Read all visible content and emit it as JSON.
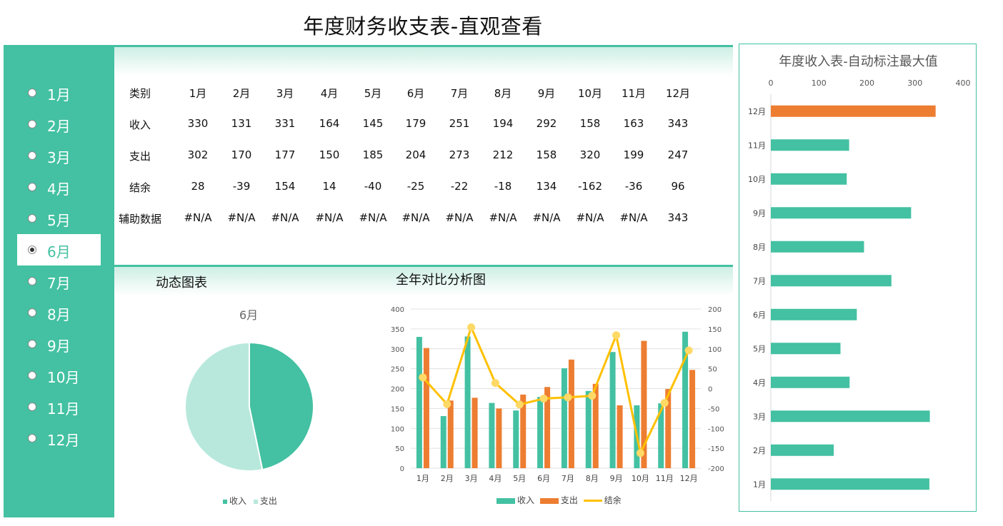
{
  "page_title": "年度财务收支表-直观查看",
  "sidebar": {
    "months": [
      "1月",
      "2月",
      "3月",
      "4月",
      "5月",
      "6月",
      "7月",
      "8月",
      "9月",
      "10月",
      "11月",
      "12月"
    ],
    "selected_index": 5
  },
  "table": {
    "rows": [
      {
        "label": "类别",
        "cells": [
          "1月",
          "2月",
          "3月",
          "4月",
          "5月",
          "6月",
          "7月",
          "8月",
          "9月",
          "10月",
          "11月",
          "12月"
        ]
      },
      {
        "label": "收入",
        "cells": [
          "330",
          "131",
          "331",
          "164",
          "145",
          "179",
          "251",
          "194",
          "292",
          "158",
          "163",
          "343"
        ]
      },
      {
        "label": "支出",
        "cells": [
          "302",
          "170",
          "177",
          "150",
          "185",
          "204",
          "273",
          "212",
          "158",
          "320",
          "199",
          "247"
        ]
      },
      {
        "label": "结余",
        "cells": [
          "28",
          "-39",
          "154",
          "14",
          "-40",
          "-25",
          "-22",
          "-18",
          "134",
          "-162",
          "-36",
          "96"
        ]
      },
      {
        "label": "辅助数据",
        "cells": [
          "#N/A",
          "#N/A",
          "#N/A",
          "#N/A",
          "#N/A",
          "#N/A",
          "#N/A",
          "#N/A",
          "#N/A",
          "#N/A",
          "#N/A",
          "343"
        ]
      }
    ]
  },
  "sections": {
    "dynamic_chart": "动态图表",
    "comparison_chart": "全年对比分析图"
  },
  "colors": {
    "income": "#43c1a2",
    "expense": "#ed7d31",
    "balance": "#ffc000",
    "pie_expense": "#b8e8dc",
    "max_bar": "#ed7d31"
  },
  "chart_data": [
    {
      "type": "pie",
      "title": "6月",
      "labels": [
        "收入",
        "支出"
      ],
      "values": [
        179,
        204
      ],
      "legend": "bottom"
    },
    {
      "type": "bar",
      "title": "",
      "categories": [
        "1月",
        "2月",
        "3月",
        "4月",
        "5月",
        "6月",
        "7月",
        "8月",
        "9月",
        "10月",
        "11月",
        "12月"
      ],
      "series": [
        {
          "name": "收入",
          "type": "bar",
          "axis": "left",
          "values": [
            330,
            131,
            331,
            164,
            145,
            179,
            251,
            194,
            292,
            158,
            163,
            343
          ]
        },
        {
          "name": "支出",
          "type": "bar",
          "axis": "left",
          "values": [
            302,
            170,
            177,
            150,
            185,
            204,
            273,
            212,
            158,
            320,
            199,
            247
          ]
        },
        {
          "name": "结余",
          "type": "line",
          "axis": "right",
          "values": [
            28,
            -39,
            154,
            14,
            -40,
            -25,
            -22,
            -18,
            134,
            -162,
            -36,
            96
          ]
        }
      ],
      "ylim": [
        0,
        400
      ],
      "y_ticks": [
        "0",
        "50",
        "100",
        "150",
        "200",
        "250",
        "300",
        "350",
        "400"
      ],
      "y2lim": [
        -200,
        200
      ],
      "y2_ticks": [
        "-200",
        "-150",
        "-100",
        "-50",
        "0",
        "50",
        "100",
        "150",
        "200"
      ],
      "grid": true,
      "legend": "bottom"
    },
    {
      "type": "bar",
      "orientation": "horizontal",
      "title": "年度收入表-自动标注最大值",
      "categories": [
        "1月",
        "2月",
        "3月",
        "4月",
        "5月",
        "6月",
        "7月",
        "8月",
        "9月",
        "10月",
        "11月",
        "12月"
      ],
      "values": [
        330,
        131,
        331,
        164,
        145,
        179,
        251,
        194,
        292,
        158,
        163,
        343
      ],
      "highlight_max": true,
      "xlim": [
        0,
        400
      ],
      "x_ticks": [
        "0",
        "100",
        "200",
        "300",
        "400"
      ],
      "legend": "none"
    }
  ]
}
